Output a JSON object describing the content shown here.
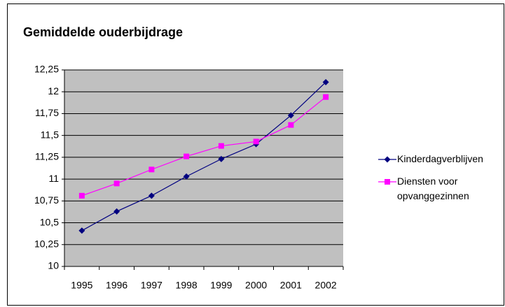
{
  "chart_data": {
    "type": "line",
    "title": "Gemiddelde ouderbijdrage",
    "categories": [
      "1995",
      "1996",
      "1997",
      "1998",
      "1999",
      "2000",
      "2001",
      "2002"
    ],
    "series": [
      {
        "name": "Kinderdagverblijven",
        "color": "#000080",
        "marker": "diamond",
        "values": [
          10.41,
          10.63,
          10.81,
          11.03,
          11.23,
          11.4,
          11.73,
          12.11
        ]
      },
      {
        "name": "Diensten voor opvanggezinnen",
        "color": "#ff00ff",
        "marker": "square",
        "values": [
          10.81,
          10.95,
          11.11,
          11.26,
          11.38,
          11.43,
          11.62,
          11.94
        ]
      }
    ],
    "ylim": [
      10,
      12.25
    ],
    "yticks": [
      10,
      {
        "value": 10.25,
        "label": "10,25"
      },
      {
        "value": 10.5,
        "label": "10,5"
      },
      {
        "value": 10.75,
        "label": "10,75"
      },
      11,
      {
        "value": 11.25,
        "label": "11,25"
      },
      {
        "value": 11.5,
        "label": "11,5"
      },
      {
        "value": 11.75,
        "label": "11,75"
      },
      12,
      {
        "value": 12.25,
        "label": "12,25"
      }
    ],
    "grid": true,
    "legend": "right",
    "plot_background": "#c0c0c0"
  }
}
